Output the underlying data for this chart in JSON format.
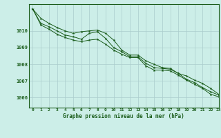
{
  "xlabel": "Graphe pression niveau de la mer (hPa)",
  "background_color": "#cceee8",
  "grid_color": "#aacccc",
  "line_color": "#1a5c1a",
  "ylim": [
    1005.4,
    1011.6
  ],
  "xlim": [
    -0.5,
    23
  ],
  "yticks": [
    1006,
    1007,
    1008,
    1009,
    1010
  ],
  "xticks": [
    0,
    1,
    2,
    3,
    4,
    5,
    6,
    7,
    8,
    9,
    10,
    11,
    12,
    13,
    14,
    15,
    16,
    17,
    18,
    19,
    20,
    21,
    22,
    23
  ],
  "line1": [
    1011.3,
    1010.75,
    1010.45,
    1010.2,
    1010.0,
    1009.85,
    1009.95,
    1010.0,
    1010.05,
    1009.85,
    1009.45,
    1008.85,
    1008.55,
    1008.55,
    1008.2,
    1008.0,
    1007.8,
    1007.75,
    1007.45,
    1007.3,
    1007.05,
    1006.85,
    1006.55,
    1006.2
  ],
  "line2": [
    1011.3,
    1010.45,
    1010.25,
    1010.0,
    1009.75,
    1009.65,
    1009.5,
    1009.85,
    1009.95,
    1009.55,
    1009.0,
    1008.75,
    1008.45,
    1008.45,
    1008.05,
    1007.8,
    1007.75,
    1007.7,
    1007.45,
    1007.1,
    1006.9,
    1006.6,
    1006.35,
    1006.15
  ],
  "line3": [
    1011.3,
    1010.35,
    1010.1,
    1009.8,
    1009.6,
    1009.45,
    1009.35,
    1009.45,
    1009.5,
    1009.2,
    1008.85,
    1008.6,
    1008.4,
    1008.4,
    1007.9,
    1007.65,
    1007.65,
    1007.6,
    1007.35,
    1007.05,
    1006.8,
    1006.55,
    1006.2,
    1006.05
  ]
}
